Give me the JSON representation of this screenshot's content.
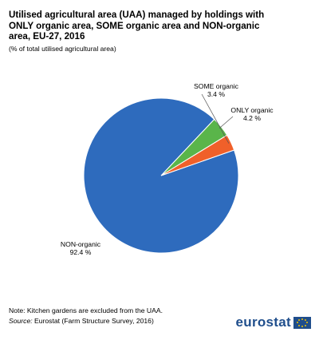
{
  "header": {
    "title": "Utilised agricultural area (UAA) managed by holdings with ONLY organic area, SOME organic area and NON-organic area, EU-27, 2016",
    "subtitle": "(% of total utilised agricultural area)"
  },
  "chart_data": {
    "type": "pie",
    "slices": [
      {
        "label": "ONLY organic",
        "value": 4.2,
        "value_label": "4.2 %",
        "color": "#5ab54a"
      },
      {
        "label": "NON-organic",
        "value": 92.4,
        "value_label": "92.4 %",
        "color": "#2e6bbd"
      },
      {
        "label": "SOME organic",
        "value": 3.4,
        "value_label": "3.4 %",
        "color": "#f0602a"
      }
    ]
  },
  "footer": {
    "note": "Note: Kitchen gardens are excluded from the UAA.",
    "source_label": "Source:",
    "source_text": " Eurostat (Farm Structure Survey, 2016)"
  },
  "logo": {
    "text": "eurostat"
  }
}
